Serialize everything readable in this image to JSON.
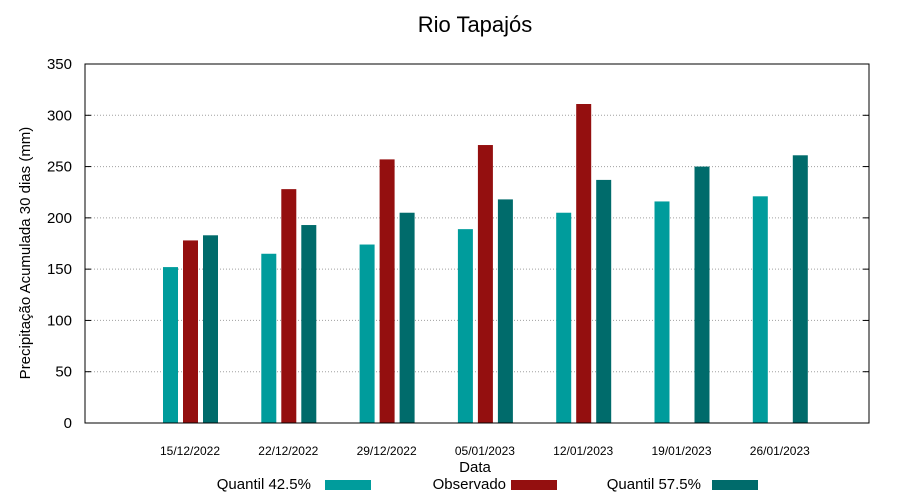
{
  "chart_data": {
    "type": "bar",
    "title": "Rio Tapajós",
    "xlabel": "Data",
    "ylabel": "Precipitação Acumulada 30 dias (mm)",
    "ylim": [
      0,
      350
    ],
    "yticks": [
      0,
      50,
      100,
      150,
      200,
      250,
      300,
      350
    ],
    "grid": "horizontal dotted",
    "legend_position": "bottom",
    "categories": [
      "15/12/2022",
      "22/12/2022",
      "29/12/2022",
      "05/01/2023",
      "12/01/2023",
      "19/01/2023",
      "26/01/2023"
    ],
    "series": [
      {
        "name": "Quantil 42.5%",
        "color": "#009c9c",
        "values": [
          152,
          165,
          174,
          189,
          205,
          216,
          221
        ]
      },
      {
        "name": "Observado",
        "color": "#940f0f",
        "values": [
          178,
          228,
          257,
          271,
          311,
          null,
          null
        ]
      },
      {
        "name": "Quantil 57.5%",
        "color": "#006b6b",
        "values": [
          183,
          193,
          205,
          218,
          237,
          250,
          261
        ]
      }
    ]
  }
}
